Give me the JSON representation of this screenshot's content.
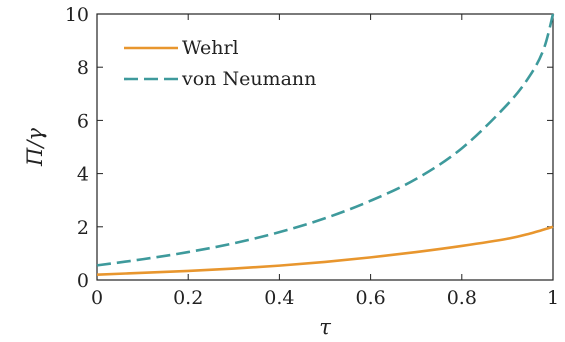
{
  "chart_data": {
    "type": "line",
    "title": "",
    "xlabel": "τ",
    "ylabel": "Π/γ",
    "xlim": [
      0,
      1
    ],
    "ylim": [
      0,
      10
    ],
    "xticks": [
      "0",
      "0.2",
      "0.4",
      "0.6",
      "0.8",
      "1"
    ],
    "yticks": [
      "0",
      "2",
      "4",
      "6",
      "8",
      "10"
    ],
    "grid": false,
    "legend_position": "top-left",
    "series": [
      {
        "name": "Wehrl",
        "style": "solid",
        "color": "#E8962E",
        "x": [
          0,
          0.1,
          0.2,
          0.3,
          0.4,
          0.5,
          0.6,
          0.7,
          0.8,
          0.9,
          0.95,
          1.0
        ],
        "y": [
          0.2,
          0.27,
          0.34,
          0.43,
          0.54,
          0.68,
          0.85,
          1.05,
          1.28,
          1.55,
          1.75,
          2.0
        ]
      },
      {
        "name": "von Neumann",
        "style": "dashed",
        "color": "#3E9A9C",
        "x": [
          0,
          0.1,
          0.2,
          0.3,
          0.4,
          0.5,
          0.6,
          0.7,
          0.8,
          0.9,
          0.95,
          0.98,
          1.0
        ],
        "y": [
          0.55,
          0.78,
          1.05,
          1.38,
          1.8,
          2.32,
          2.98,
          3.8,
          4.95,
          6.6,
          7.7,
          8.7,
          10.0
        ]
      }
    ]
  }
}
